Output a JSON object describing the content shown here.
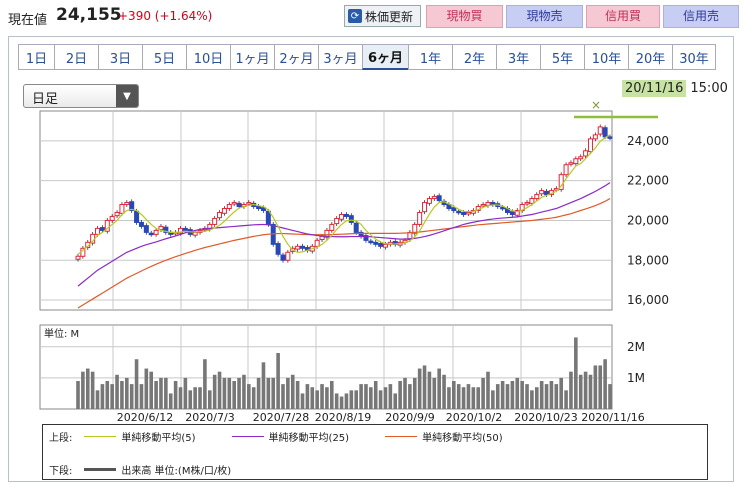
{
  "header": {
    "price_label": "現在値",
    "price_value": "24,155",
    "price_change": "+390 (+1.64%)",
    "refresh_label": "株価更新",
    "buttons": [
      {
        "label": "現物買",
        "kind": "buy"
      },
      {
        "label": "現物売",
        "kind": "sell"
      },
      {
        "label": "信用買",
        "kind": "buy"
      },
      {
        "label": "信用売",
        "kind": "sell"
      }
    ]
  },
  "tabs": [
    {
      "label": "1日",
      "active": false
    },
    {
      "label": "2日",
      "active": false
    },
    {
      "label": "3日",
      "active": false
    },
    {
      "label": "5日",
      "active": false
    },
    {
      "label": "10日",
      "active": false
    },
    {
      "label": "1ヶ月",
      "active": false
    },
    {
      "label": "2ヶ月",
      "active": false
    },
    {
      "label": "3ヶ月",
      "active": false
    },
    {
      "label": "6ヶ月",
      "active": true
    },
    {
      "label": "1年",
      "active": false
    },
    {
      "label": "2年",
      "active": false
    },
    {
      "label": "3年",
      "active": false
    },
    {
      "label": "5年",
      "active": false
    },
    {
      "label": "10年",
      "active": false
    },
    {
      "label": "20年",
      "active": false
    },
    {
      "label": "30年",
      "active": false
    }
  ],
  "period_select": {
    "value": "日足"
  },
  "datetime": {
    "date": "20/11/16",
    "time": "15:00"
  },
  "colors": {
    "up": "#e0283c",
    "down": "#2848b8",
    "ma5": "#b8c820",
    "ma25": "#8a2ac8",
    "ma50": "#e05a2a",
    "volume": "#777777",
    "marker": "#8fbf3a"
  },
  "chart_data": [
    {
      "type": "candlestick",
      "ylim": [
        15500,
        25500
      ],
      "y_ticks": [
        16000,
        18000,
        20000,
        22000,
        24000
      ],
      "y_tick_labels": [
        "16,000",
        "18,000",
        "20,000",
        "22,000",
        "24,000"
      ],
      "grid": true,
      "note": "",
      "closes": [
        18200,
        18600,
        18900,
        19300,
        19600,
        19500,
        20000,
        20200,
        20400,
        20800,
        20900,
        20500,
        19900,
        19700,
        19400,
        19300,
        19500,
        19700,
        19400,
        19300,
        19400,
        19600,
        19500,
        19300,
        19400,
        19500,
        19600,
        19800,
        20100,
        20400,
        20600,
        20800,
        20900,
        20700,
        20800,
        20900,
        20700,
        20600,
        20500,
        19800,
        18800,
        18300,
        18000,
        18400,
        18600,
        18700,
        18600,
        18500,
        18700,
        19000,
        19200,
        19500,
        19800,
        20100,
        20300,
        20200,
        19900,
        19400,
        19200,
        19000,
        18900,
        18800,
        18700,
        18800,
        18900,
        18800,
        18900,
        19000,
        19400,
        19800,
        20400,
        20900,
        21100,
        21200,
        21000,
        20800,
        20600,
        20500,
        20400,
        20300,
        20400,
        20500,
        20700,
        20800,
        20900,
        20800,
        20700,
        20600,
        20400,
        20300,
        20500,
        20800,
        20900,
        21100,
        21300,
        21500,
        21300,
        21500,
        21600,
        22300,
        22800,
        22900,
        23100,
        23200,
        23500,
        24100,
        24300,
        24700,
        24200,
        24155
      ],
      "ma5": [
        18300,
        18500,
        18700,
        18950,
        19250,
        19400,
        19600,
        19800,
        20000,
        20300,
        20500,
        20560,
        20500,
        20300,
        20050,
        19800,
        19600,
        19500,
        19450,
        19400,
        19400,
        19420,
        19450,
        19430,
        19420,
        19440,
        19460,
        19520,
        19620,
        19760,
        19960,
        20200,
        20430,
        20620,
        20700,
        20760,
        20800,
        20740,
        20700,
        20520,
        20150,
        19700,
        19200,
        18800,
        18500,
        18400,
        18420,
        18500,
        18580,
        18660,
        18800,
        19000,
        19250,
        19550,
        19800,
        19980,
        20020,
        19980,
        19800,
        19500,
        19270,
        19060,
        18920,
        18840,
        18820,
        18820,
        18840,
        18880,
        18980,
        19180,
        19480,
        19900,
        20320,
        20680,
        20900,
        20940,
        20820,
        20700,
        20560,
        20460,
        20440,
        20460,
        20540,
        20660,
        20740,
        20780,
        20780,
        20720,
        20600,
        20480,
        20440,
        20520,
        20640,
        20800,
        20980,
        21160,
        21260,
        21360,
        21460,
        21740,
        22100,
        22420,
        22740,
        22860,
        23100,
        23380,
        23640,
        23980,
        24160,
        24300
      ],
      "ma25": [
        16700,
        16900,
        17100,
        17300,
        17500,
        17650,
        17800,
        17950,
        18100,
        18250,
        18400,
        18500,
        18600,
        18700,
        18780,
        18850,
        18920,
        19000,
        19080,
        19150,
        19220,
        19300,
        19380,
        19440,
        19500,
        19550,
        19580,
        19600,
        19620,
        19640,
        19660,
        19680,
        19700,
        19720,
        19740,
        19760,
        19780,
        19790,
        19800,
        19780,
        19740,
        19680,
        19620,
        19560,
        19500,
        19440,
        19380,
        19320,
        19280,
        19240,
        19220,
        19200,
        19190,
        19180,
        19180,
        19180,
        19190,
        19190,
        19200,
        19190,
        19180,
        19160,
        19140,
        19120,
        19100,
        19080,
        19060,
        19060,
        19080,
        19100,
        19140,
        19190,
        19250,
        19320,
        19400,
        19480,
        19560,
        19640,
        19720,
        19800,
        19860,
        19910,
        19960,
        20000,
        20040,
        20070,
        20100,
        20120,
        20140,
        20160,
        20180,
        20220,
        20260,
        20300,
        20360,
        20420,
        20480,
        20540,
        20600,
        20700,
        20800,
        20900,
        21000,
        21100,
        21220,
        21340,
        21460,
        21600,
        21740,
        21900
      ],
      "ma50": [
        15600,
        15750,
        15900,
        16050,
        16200,
        16350,
        16500,
        16650,
        16800,
        16950,
        17100,
        17220,
        17340,
        17460,
        17580,
        17690,
        17800,
        17900,
        18000,
        18090,
        18180,
        18260,
        18340,
        18420,
        18500,
        18570,
        18640,
        18700,
        18760,
        18820,
        18880,
        18940,
        19000,
        19050,
        19100,
        19150,
        19200,
        19240,
        19280,
        19310,
        19330,
        19340,
        19340,
        19330,
        19320,
        19310,
        19300,
        19290,
        19280,
        19280,
        19280,
        19280,
        19290,
        19300,
        19310,
        19320,
        19330,
        19340,
        19350,
        19350,
        19350,
        19350,
        19350,
        19350,
        19350,
        19350,
        19360,
        19370,
        19380,
        19400,
        19420,
        19450,
        19480,
        19510,
        19540,
        19570,
        19600,
        19630,
        19660,
        19690,
        19720,
        19750,
        19780,
        19800,
        19820,
        19840,
        19860,
        19880,
        19900,
        19920,
        19940,
        19960,
        19980,
        20000,
        20030,
        20060,
        20090,
        20120,
        20160,
        20220,
        20280,
        20340,
        20420,
        20500,
        20580,
        20660,
        20750,
        20850,
        20960,
        21100
      ]
    },
    {
      "type": "bar",
      "ylim": [
        0,
        2.7
      ],
      "y_tick_labels": [
        "2M",
        "1M"
      ],
      "y_ticks": [
        2,
        1
      ],
      "axis_label": "単位: M",
      "x_tick_labels": [
        "2020/6/12",
        "2020/7/3",
        "2020/7/28",
        "2020/8/19",
        "2020/9/9",
        "2020/10/2",
        "2020/10/23",
        "2020/11/16"
      ],
      "values": [
        0.9,
        1.2,
        1.3,
        1.2,
        0.6,
        0.8,
        0.9,
        0.8,
        1.1,
        0.9,
        1.0,
        0.8,
        1.6,
        0.8,
        1.3,
        1.2,
        0.9,
        1.0,
        1.0,
        0.5,
        0.9,
        0.7,
        1.0,
        0.6,
        0.7,
        0.7,
        1.6,
        0.6,
        1.1,
        1.2,
        1.0,
        1.0,
        0.9,
        1.0,
        1.1,
        0.8,
        0.7,
        1.0,
        1.5,
        1.0,
        1.0,
        1.8,
        0.8,
        1.0,
        1.1,
        0.9,
        0.5,
        0.8,
        0.7,
        0.6,
        0.8,
        0.7,
        0.9,
        0.5,
        0.4,
        0.5,
        0.6,
        0.6,
        0.8,
        0.8,
        0.7,
        0.9,
        0.6,
        0.7,
        0.8,
        0.5,
        0.9,
        1.0,
        0.8,
        1.0,
        1.3,
        1.4,
        1.2,
        1.0,
        1.3,
        1.1,
        0.7,
        0.9,
        0.8,
        0.7,
        0.8,
        0.7,
        0.7,
        1.0,
        1.2,
        0.6,
        0.8,
        0.9,
        0.8,
        0.9,
        1.0,
        0.9,
        0.8,
        0.6,
        0.7,
        0.9,
        0.8,
        0.9,
        0.8,
        1.0,
        0.6,
        1.2,
        2.3,
        1.1,
        1.2,
        1.1,
        1.4,
        1.4,
        1.6,
        0.8
      ]
    }
  ],
  "legend": {
    "upper_label": "上段:",
    "lower_label": "下段:",
    "ma5_label": "単純移動平均(5)",
    "ma25_label": "単純移動平均(25)",
    "ma50_label": "単純移動平均(50)",
    "volume_label": "出来高 単位:(M株/口/枚)"
  }
}
